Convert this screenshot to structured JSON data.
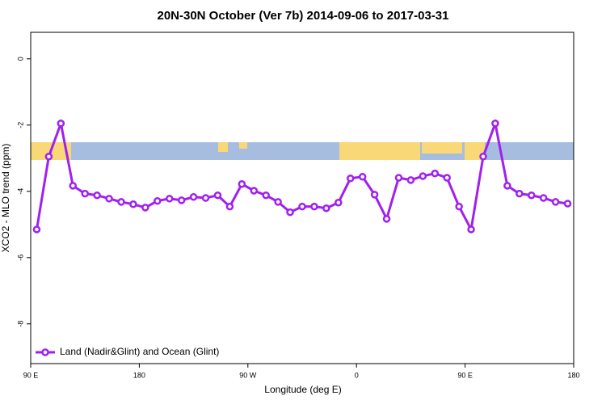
{
  "chart_data": {
    "type": "line",
    "title": "20N-30N October (Ver 7b)   2014-09-06 to 2017-03-31",
    "xlabel": "Longitude (deg E)",
    "ylabel": "XCO2 - MLO trend (ppm)",
    "x": [
      95,
      105,
      115,
      125,
      135,
      145,
      155,
      165,
      175,
      185,
      195,
      205,
      215,
      225,
      235,
      245,
      255,
      265,
      275,
      285,
      295,
      305,
      315,
      325,
      335,
      345,
      355,
      365,
      375,
      385,
      395,
      405,
      415,
      425,
      435,
      445,
      455,
      465,
      475,
      485,
      495,
      505,
      515,
      525,
      535
    ],
    "series": [
      {
        "name": "Land (Nadir&Glint) and Ocean (Glint)",
        "color": "#a020f0",
        "values": [
          -5.15,
          -2.95,
          -1.95,
          -3.83,
          -4.07,
          -4.12,
          -4.22,
          -4.32,
          -4.39,
          -4.49,
          -4.29,
          -4.22,
          -4.27,
          -4.17,
          -4.2,
          -4.12,
          -4.46,
          -3.78,
          -3.98,
          -4.12,
          -4.32,
          -4.63,
          -4.46,
          -4.46,
          -4.51,
          -4.34,
          -3.61,
          -3.56,
          -4.1,
          -4.83,
          -3.59,
          -3.66,
          -3.54,
          -3.46,
          -3.59,
          -4.46,
          -5.15,
          -2.95,
          -1.95,
          -3.83,
          -4.07,
          -4.12,
          -4.2,
          -4.32,
          -4.37
        ]
      }
    ],
    "xlim": [
      90,
      540
    ],
    "xticks": [
      {
        "value": 90,
        "label": "90 E"
      },
      180,
      {
        "value": 270,
        "label": "90 W"
      },
      {
        "value": 360,
        "label": "0"
      },
      {
        "value": 450,
        "label": "90 E"
      },
      {
        "value": 540,
        "label": "180"
      }
    ],
    "ylim": [
      -9.2,
      0.8
    ],
    "yticks": [
      0,
      -2,
      -4,
      -6,
      -8
    ],
    "legend": "bottom-left"
  }
}
